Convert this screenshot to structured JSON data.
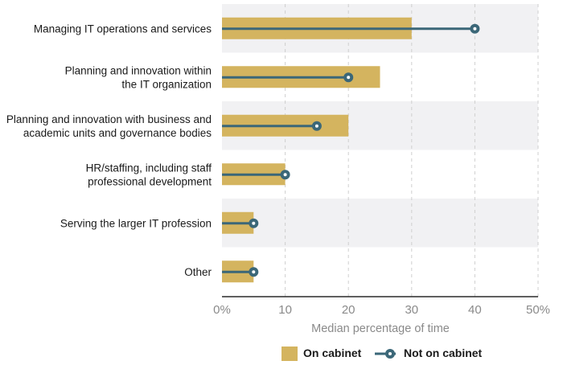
{
  "chart_data": {
    "type": "bar",
    "categories": [
      [
        "Managing IT operations and services"
      ],
      [
        "Planning and innovation within",
        "the IT organization"
      ],
      [
        "Planning and innovation with business and",
        "academic units and governance bodies"
      ],
      [
        "HR/staffing, including staff",
        "professional development"
      ],
      [
        "Serving the larger IT profession"
      ],
      [
        "Other"
      ]
    ],
    "series": [
      {
        "name": "On cabinet",
        "kind": "bar",
        "values": [
          30,
          25,
          20,
          10,
          5,
          5
        ]
      },
      {
        "name": "Not on cabinet",
        "kind": "lollipop",
        "values": [
          40,
          20,
          15,
          10,
          5,
          5
        ]
      }
    ],
    "xlim": [
      0,
      50
    ],
    "xticks": [
      "0%",
      "10",
      "20",
      "30",
      "40",
      "50%"
    ],
    "xtick_values": [
      0,
      10,
      20,
      30,
      40,
      50
    ],
    "xlabel": "Median percentage of time",
    "grid": true,
    "legend_position": "bottom-right"
  },
  "colors": {
    "bar": "#d4b45f",
    "lollipop": "#3b6778",
    "band": "#f1f1f3",
    "grid": "#cfcfcf",
    "axis": "#2a2a2a"
  }
}
